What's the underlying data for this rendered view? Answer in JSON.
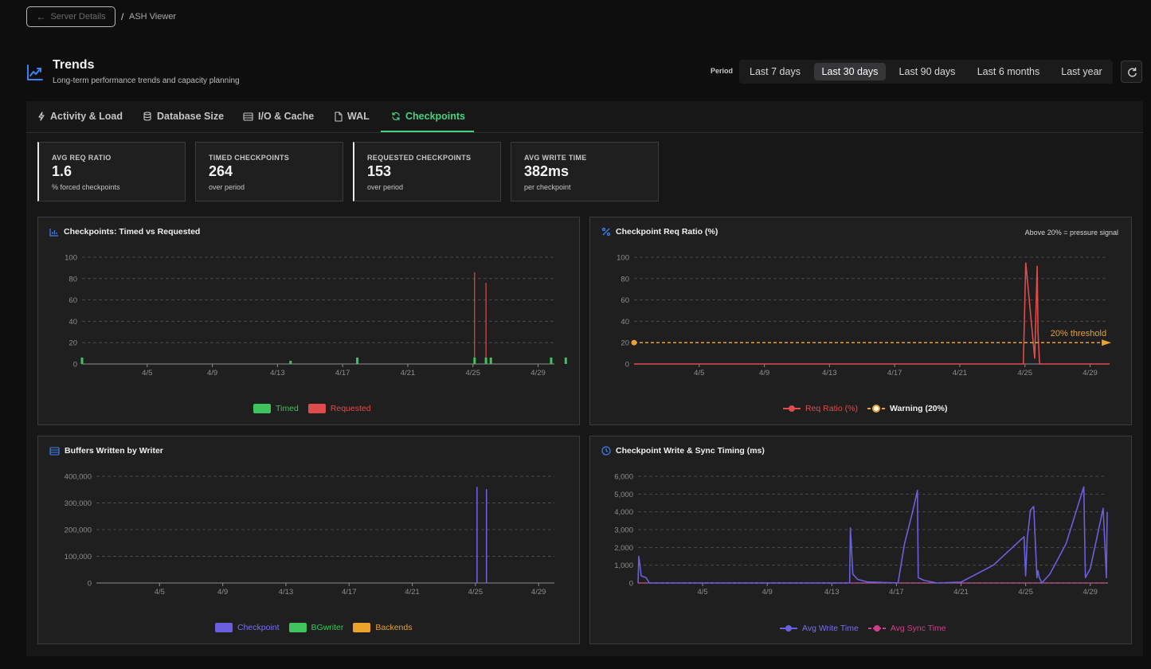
{
  "breadcrumb": {
    "back_label": "Server Details",
    "separator": "/",
    "current": "ASH Viewer"
  },
  "header": {
    "title": "Trends",
    "subtitle": "Long-term performance trends and capacity planning"
  },
  "period": {
    "label": "Period",
    "options": [
      "Last 7 days",
      "Last 30 days",
      "Last 90 days",
      "Last 6 months",
      "Last year"
    ],
    "selected": "Last 30 days"
  },
  "tabs": [
    {
      "label": "Activity & Load",
      "icon": "bolt-icon"
    },
    {
      "label": "Database Size",
      "icon": "database-icon"
    },
    {
      "label": "I/O & Cache",
      "icon": "server-icon"
    },
    {
      "label": "WAL",
      "icon": "file-icon"
    },
    {
      "label": "Checkpoints",
      "icon": "refresh-icon",
      "active": true
    }
  ],
  "stats": [
    {
      "label": "AVG REQ RATIO",
      "value": "1.6",
      "sub": "% forced checkpoints"
    },
    {
      "label": "TIMED CHECKPOINTS",
      "value": "264",
      "sub": "over period"
    },
    {
      "label": "REQUESTED CHECKPOINTS",
      "value": "153",
      "sub": "over period"
    },
    {
      "label": "AVG WRITE TIME",
      "value": "382ms",
      "sub": "per checkpoint"
    }
  ],
  "cards": {
    "c1": {
      "title": "Checkpoints: Timed vs Requested"
    },
    "c2": {
      "title": "Checkpoint Req Ratio (%)",
      "note": "Above 20% = pressure signal",
      "threshold_label": "20% threshold"
    },
    "c3": {
      "title": "Buffers Written by Writer"
    },
    "c4": {
      "title": "Checkpoint Write & Sync Timing (ms)"
    }
  },
  "colors": {
    "timed": "#3fc35b",
    "requested": "#e04b4b",
    "warning": "#eaa22b",
    "checkpoint": "#6b5fe0",
    "bgwriter": "#3fc35b",
    "backends": "#eaa22b",
    "write": "#6b5fe0",
    "sync": "#d03f8c"
  },
  "chart_data": [
    {
      "type": "bar",
      "title": "Checkpoints: Timed vs Requested",
      "xlim": [
        1,
        30
      ],
      "ylim": [
        0,
        100
      ],
      "x_ticks": [
        "4/5",
        "4/9",
        "4/13",
        "4/17",
        "4/21",
        "4/25",
        "4/29"
      ],
      "y_ticks": [
        "0",
        "20",
        "40",
        "60",
        "80",
        "100"
      ],
      "series": [
        {
          "name": "Timed",
          "points": [
            [
              1.0,
              6
            ],
            [
              13.8,
              3
            ],
            [
              17.9,
              6
            ],
            [
              25.1,
              6
            ],
            [
              25.8,
              6
            ],
            [
              26.1,
              6
            ],
            [
              29.8,
              6
            ],
            [
              30.7,
              6
            ]
          ]
        },
        {
          "name": "Requested",
          "points": [
            [
              25.1,
              86
            ],
            [
              25.8,
              76
            ]
          ]
        }
      ],
      "legend": "bottom",
      "grid": true
    },
    {
      "type": "line",
      "title": "Checkpoint Req Ratio (%)",
      "xlim": [
        1,
        30
      ],
      "ylim": [
        0,
        100
      ],
      "x_ticks": [
        "4/5",
        "4/9",
        "4/13",
        "4/17",
        "4/21",
        "4/25",
        "4/29"
      ],
      "y_ticks": [
        "0",
        "20",
        "40",
        "60",
        "80",
        "100"
      ],
      "series": [
        {
          "name": "Req Ratio (%)",
          "x": [
            1,
            24.9,
            25.05,
            25.6,
            25.75,
            25.8,
            25.9,
            26.0,
            30.2
          ],
          "y": [
            0,
            0,
            95,
            5,
            92,
            30,
            0,
            0,
            0
          ]
        },
        {
          "name": "Warning (20%)",
          "x": [
            1,
            30.2
          ],
          "y": [
            20,
            20
          ]
        }
      ],
      "legend": "bottom",
      "grid": true
    },
    {
      "type": "bar",
      "title": "Buffers Written by Writer",
      "xlim": [
        1,
        30
      ],
      "ylim": [
        0,
        400000
      ],
      "x_ticks": [
        "4/5",
        "4/9",
        "4/13",
        "4/17",
        "4/21",
        "4/25",
        "4/29"
      ],
      "y_ticks": [
        "0",
        "100,000",
        "200,000",
        "300,000",
        "400,000"
      ],
      "series": [
        {
          "name": "Checkpoint",
          "points": [
            [
              25.1,
              360000
            ],
            [
              25.7,
              352000
            ]
          ]
        },
        {
          "name": "BGwriter",
          "points": []
        },
        {
          "name": "Backends",
          "points": []
        }
      ],
      "legend": "bottom",
      "grid": true
    },
    {
      "type": "line",
      "title": "Checkpoint Write & Sync Timing (ms)",
      "xlim": [
        1,
        30
      ],
      "ylim": [
        0,
        6000
      ],
      "x_ticks": [
        "4/5",
        "4/9",
        "4/13",
        "4/17",
        "4/21",
        "4/25",
        "4/29"
      ],
      "y_ticks": [
        "0",
        "1,000",
        "2,000",
        "3,000",
        "4,000",
        "5,000",
        "6,000"
      ],
      "series": [
        {
          "name": "Avg Write Time",
          "x": [
            1.0,
            1.05,
            1.2,
            1.5,
            1.7,
            14.1,
            14.15,
            14.3,
            14.6,
            15.2,
            17.1,
            17.5,
            18.0,
            18.3,
            18.35,
            18.7,
            19.5,
            21.0,
            23.0,
            24.9,
            25.0,
            25.1,
            25.3,
            25.5,
            25.7,
            25.75,
            25.85,
            26.0,
            26.5,
            27.5,
            28.6,
            28.7,
            29.0,
            29.4,
            29.8,
            30.0,
            30.05
          ],
          "y": [
            0,
            1500,
            400,
            300,
            0,
            0,
            3100,
            500,
            200,
            60,
            0,
            2200,
            4000,
            5200,
            300,
            150,
            0,
            50,
            1000,
            2600,
            400,
            2500,
            4100,
            4300,
            300,
            700,
            300,
            0,
            500,
            2200,
            5400,
            300,
            800,
            2500,
            4200,
            300,
            4000
          ]
        },
        {
          "name": "Avg Sync Time",
          "x": [
            1,
            30.1
          ],
          "y": [
            0,
            0
          ]
        }
      ],
      "legend": "bottom",
      "grid": true
    }
  ]
}
